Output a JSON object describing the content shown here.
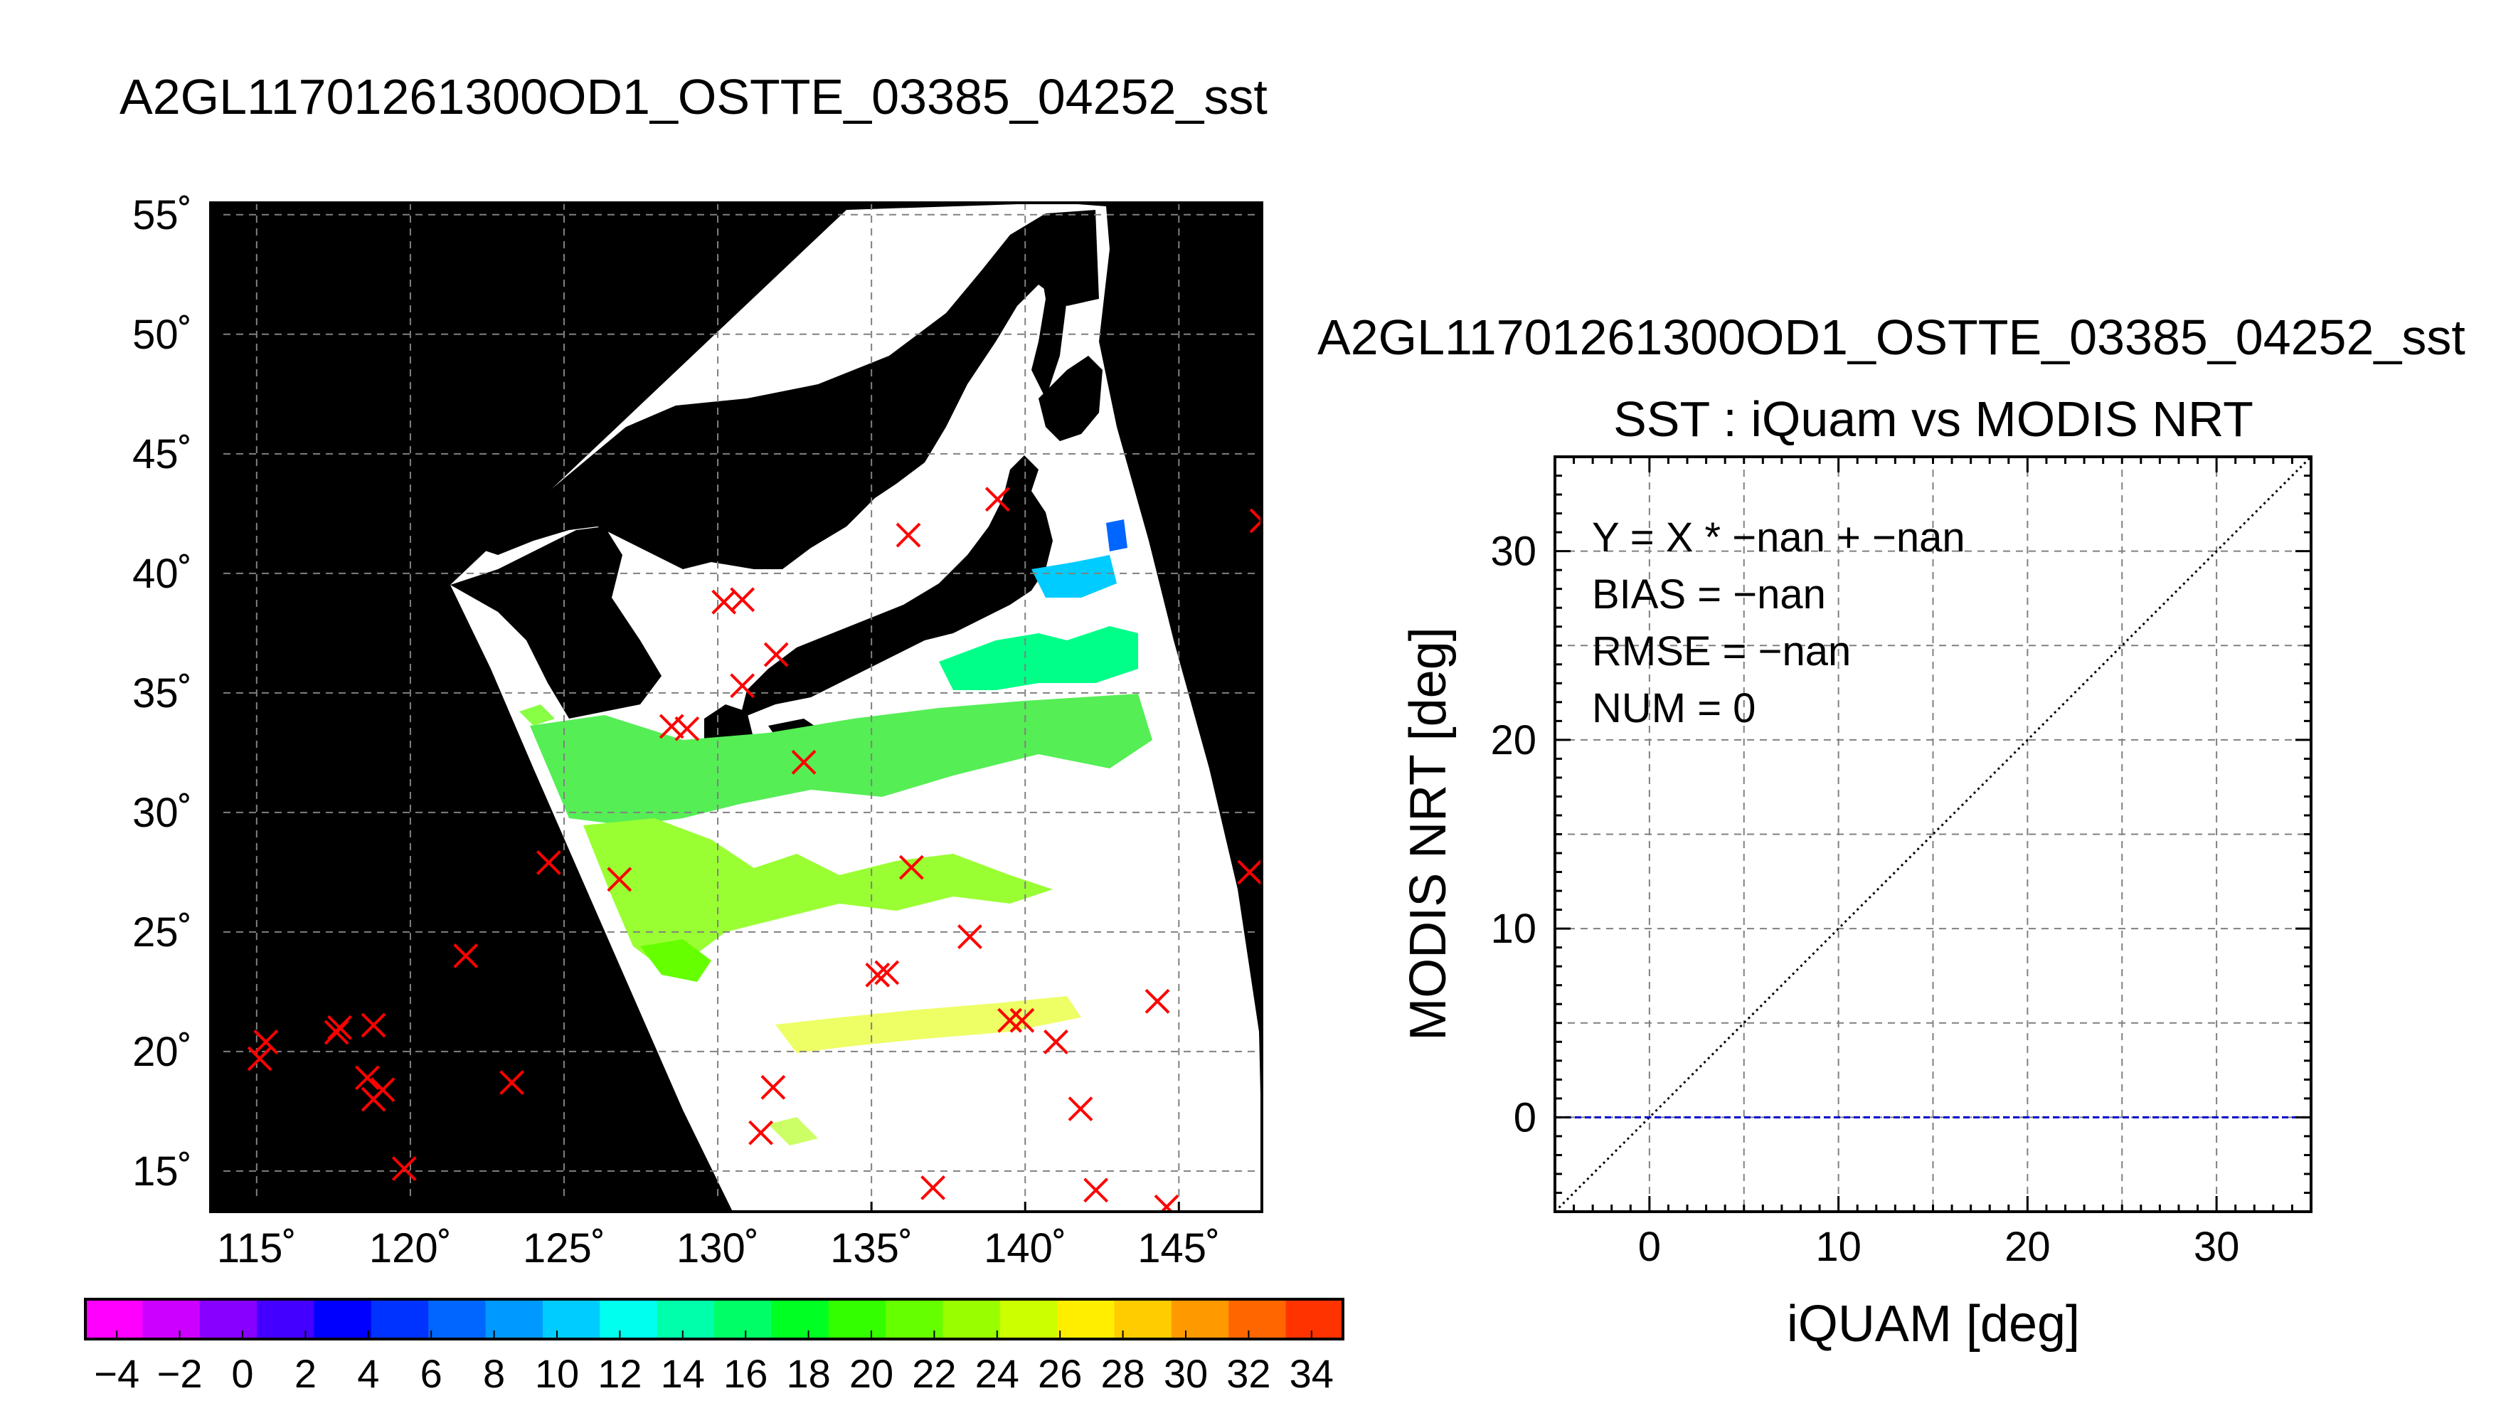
{
  "map_title": "A2GL11701261300OD1_OSTTE_03385_04252_sst",
  "scatter_title": "A2GL11701261300OD1_OSTTE_03385_04252_sst",
  "scatter_subtitle": "SST : iQuam vs MODIS NRT",
  "stats": {
    "fit": "Y = X * −nan + −nan",
    "bias": "BIAS = −nan",
    "rmse": "RMSE = −nan",
    "num": "NUM = 0"
  },
  "colors": {
    "land": "#000000",
    "marker": "#ff0000",
    "zero_line": "#0000cc",
    "grid": "#808080"
  },
  "chart_data": [
    {
      "type": "map",
      "title": "A2GL11701261300OD1_OSTTE_03385_04252_sst",
      "xlim": [
        113.5,
        147.7
      ],
      "ylim": [
        13.3,
        55.5
      ],
      "grid": true,
      "xticks": [
        115,
        120,
        125,
        130,
        135,
        140,
        145
      ],
      "yticks": [
        15,
        20,
        25,
        30,
        35,
        40,
        45,
        50,
        55
      ],
      "xtick_labels": [
        "115˚",
        "120˚",
        "125˚",
        "130˚",
        "135˚",
        "140˚",
        "145˚"
      ],
      "ytick_labels": [
        "15˚",
        "20˚",
        "25˚",
        "30˚",
        "35˚",
        "40˚",
        "45˚",
        "50˚",
        "55˚"
      ],
      "markers": [
        [
          115.3,
          20.4
        ],
        [
          115.1,
          19.7
        ],
        [
          117.7,
          21.0
        ],
        [
          117.6,
          20.8
        ],
        [
          118.8,
          21.1
        ],
        [
          118.6,
          18.9
        ],
        [
          119.1,
          18.4
        ],
        [
          118.8,
          18.0
        ],
        [
          119.8,
          15.1
        ],
        [
          121.8,
          24.0
        ],
        [
          123.3,
          18.7
        ],
        [
          124.5,
          27.9
        ],
        [
          126.8,
          27.2
        ],
        [
          128.5,
          33.6
        ],
        [
          129.0,
          33.5
        ],
        [
          130.2,
          38.8
        ],
        [
          130.8,
          38.9
        ],
        [
          130.8,
          35.3
        ],
        [
          131.9,
          36.6
        ],
        [
          132.8,
          32.1
        ],
        [
          131.8,
          18.5
        ],
        [
          131.4,
          16.6
        ],
        [
          135.2,
          23.2
        ],
        [
          135.5,
          23.3
        ],
        [
          136.3,
          27.7
        ],
        [
          136.2,
          41.6
        ],
        [
          137.0,
          14.3
        ],
        [
          138.2,
          24.8
        ],
        [
          139.1,
          43.1
        ],
        [
          139.5,
          21.3
        ],
        [
          139.9,
          21.3
        ],
        [
          141.0,
          20.4
        ],
        [
          141.8,
          17.6
        ],
        [
          142.3,
          14.2
        ],
        [
          144.3,
          22.1
        ],
        [
          144.6,
          13.5
        ],
        [
          147.3,
          27.5
        ],
        [
          147.7,
          42.2
        ]
      ],
      "colorbar": {
        "min": -5,
        "max": 35,
        "step": 2,
        "ticks": [
          -4,
          -2,
          0,
          2,
          4,
          6,
          8,
          10,
          12,
          14,
          16,
          18,
          20,
          22,
          24,
          26,
          28,
          30,
          32,
          34
        ],
        "tick_labels": [
          "−4",
          "−2",
          "0",
          "2",
          "4",
          "6",
          "8",
          "10",
          "12",
          "14",
          "16",
          "18",
          "20",
          "22",
          "24",
          "26",
          "28",
          "30",
          "32",
          "34"
        ],
        "colors": [
          "#ff00ff",
          "#cc00ff",
          "#8800ff",
          "#4400ff",
          "#0000ff",
          "#0033ff",
          "#0066ff",
          "#0099ff",
          "#00ccff",
          "#00ffee",
          "#00ffaa",
          "#00ff66",
          "#00ff22",
          "#33ff00",
          "#66ff00",
          "#99ff00",
          "#ccff00",
          "#ffee00",
          "#ffcc00",
          "#ff9900",
          "#ff6600",
          "#ff3300"
        ]
      }
    },
    {
      "type": "scatter",
      "title": "SST : iQuam vs MODIS NRT",
      "xlabel": "iQUAM [deg]",
      "ylabel": "MODIS NRT [deg]",
      "xlim": [
        -5,
        35
      ],
      "ylim": [
        -5,
        35
      ],
      "xticks": [
        0,
        10,
        20,
        30
      ],
      "yticks": [
        0,
        10,
        20,
        30
      ],
      "grid_step": 5,
      "grid": true,
      "points": [],
      "lines": [
        {
          "style": "dotted",
          "from": [
            -5,
            -5
          ],
          "to": [
            35,
            35
          ]
        },
        {
          "style": "dashed",
          "from": [
            -5,
            0
          ],
          "to": [
            35,
            0
          ]
        }
      ]
    }
  ]
}
